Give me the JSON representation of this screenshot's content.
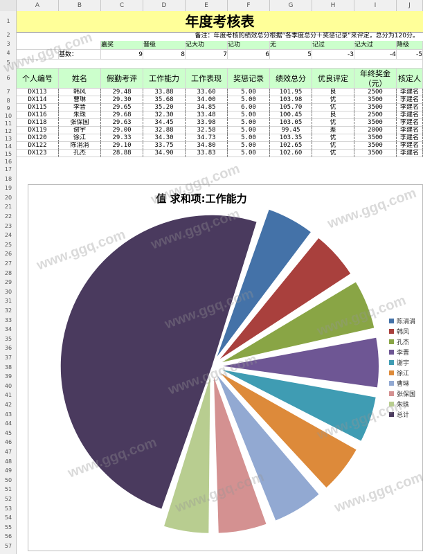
{
  "columns": [
    "A",
    "B",
    "C",
    "D",
    "E",
    "F",
    "G",
    "H",
    "I",
    "J"
  ],
  "rows": [
    "1",
    "2",
    "3",
    "4",
    "5",
    "6",
    "7",
    "8",
    "9",
    "10",
    "11",
    "12",
    "13",
    "14",
    "15",
    "16",
    "17",
    "18",
    "19",
    "20",
    "21",
    "22",
    "23",
    "24",
    "25",
    "26",
    "27",
    "28",
    "29",
    "30",
    "31",
    "32",
    "33",
    "34",
    "35",
    "36",
    "37",
    "38",
    "39",
    "40",
    "41",
    "42",
    "43",
    "44",
    "45",
    "46",
    "47",
    "48",
    "49",
    "50",
    "51",
    "52",
    "53",
    "54",
    "55",
    "56",
    "57"
  ],
  "sheet": {
    "title": "年度考核表",
    "note": "备注：年度考核的绩效总分根据“各季度总分＋奖惩记录”来评定，总分为120分。",
    "reward_labels": [
      "嘉奖",
      "晋级",
      "记大功",
      "记功",
      "无",
      "记过",
      "记大过",
      "降级"
    ],
    "base_label": "基数：",
    "base_values": [
      "9",
      "8",
      "7",
      "6",
      "5",
      "-3",
      "-4",
      "-5"
    ],
    "headers": [
      "个人编号",
      "姓名",
      "假勤考评",
      "工作能力",
      "工作表现",
      "奖惩记录",
      "绩效总分",
      "优良评定",
      "年终奖金（元）",
      "核定人"
    ],
    "rows": [
      [
        "DX113",
        "韩风",
        "29.48",
        "33.88",
        "33.60",
        "5.00",
        "101.95",
        "良",
        "2500",
        "李建名"
      ],
      [
        "DX114",
        "曹琳",
        "29.30",
        "35.68",
        "34.00",
        "5.00",
        "103.98",
        "优",
        "3500",
        "李建名"
      ],
      [
        "DX115",
        "李晋",
        "29.65",
        "35.20",
        "34.85",
        "6.00",
        "105.70",
        "优",
        "3500",
        "李建名"
      ],
      [
        "DX116",
        "朱珠",
        "29.68",
        "32.30",
        "33.48",
        "5.00",
        "100.45",
        "良",
        "2500",
        "李建名"
      ],
      [
        "DX118",
        "张保国",
        "29.63",
        "34.45",
        "33.98",
        "5.00",
        "103.05",
        "优",
        "3500",
        "李建名"
      ],
      [
        "DX119",
        "谢宇",
        "29.00",
        "32.88",
        "32.58",
        "5.00",
        "99.45",
        "差",
        "2000",
        "李建名"
      ],
      [
        "DX120",
        "徐江",
        "29.33",
        "34.30",
        "34.73",
        "5.00",
        "103.35",
        "优",
        "3500",
        "李建名"
      ],
      [
        "DX122",
        "陈涓涓",
        "29.10",
        "33.75",
        "34.80",
        "5.00",
        "102.65",
        "优",
        "3500",
        "李建名"
      ],
      [
        "DX123",
        "孔杰",
        "28.88",
        "34.90",
        "33.83",
        "5.00",
        "102.60",
        "优",
        "3500",
        "李建名"
      ]
    ]
  },
  "watermark": "www.ggq.com",
  "chart_data": {
    "type": "pie",
    "title": "值 求和项:工作能力",
    "series": [
      {
        "name": "求和项:工作能力",
        "labels": [
          "陈涓涓",
          "韩风",
          "孔杰",
          "李晋",
          "谢宇",
          "徐江",
          "曹琳",
          "张保国",
          "朱珠",
          "总计"
        ],
        "values": [
          33.75,
          33.88,
          34.9,
          35.2,
          32.88,
          34.3,
          35.68,
          34.45,
          32.3,
          307.34
        ]
      }
    ],
    "colors": [
      "#4472a8",
      "#a9403d",
      "#89a545",
      "#6e5694",
      "#3f9cb3",
      "#dd8a3a",
      "#92a9d2",
      "#d49191",
      "#b8cd90",
      "#4a3a5e"
    ],
    "legend": "right",
    "exploded": true
  }
}
